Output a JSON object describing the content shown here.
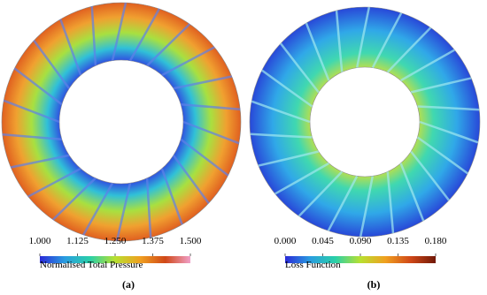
{
  "chart_data": [
    {
      "type": "contour",
      "caption": "(a)",
      "colorbar_label": "Normalised Total Pressure",
      "clim": [
        1.0,
        1.5
      ],
      "cticks": [
        {
          "value": 1.0,
          "label": "1.000"
        },
        {
          "value": 1.125,
          "label": "1.125"
        },
        {
          "value": 1.25,
          "label": "1.250"
        },
        {
          "value": 1.375,
          "label": "1.375"
        },
        {
          "value": 1.5,
          "label": "1.500"
        }
      ],
      "colors": [
        "#2a2ad8",
        "#2a9de0",
        "#2ad0a8",
        "#b8e030",
        "#f0a020",
        "#d04818",
        "#f0a0c8"
      ]
    },
    {
      "type": "contour",
      "caption": "(b)",
      "colorbar_label": "Loss Function",
      "clim": [
        0.0,
        0.18
      ],
      "cticks": [
        {
          "value": 0.0,
          "label": "0.000"
        },
        {
          "value": 0.045,
          "label": "0.045"
        },
        {
          "value": 0.09,
          "label": "0.090"
        },
        {
          "value": 0.135,
          "label": "0.135"
        },
        {
          "value": 0.18,
          "label": "0.180"
        }
      ],
      "colors": [
        "#2a2ad8",
        "#2a9de0",
        "#2ad0a8",
        "#b8e030",
        "#f0a020",
        "#d04818",
        "#701808"
      ]
    }
  ]
}
